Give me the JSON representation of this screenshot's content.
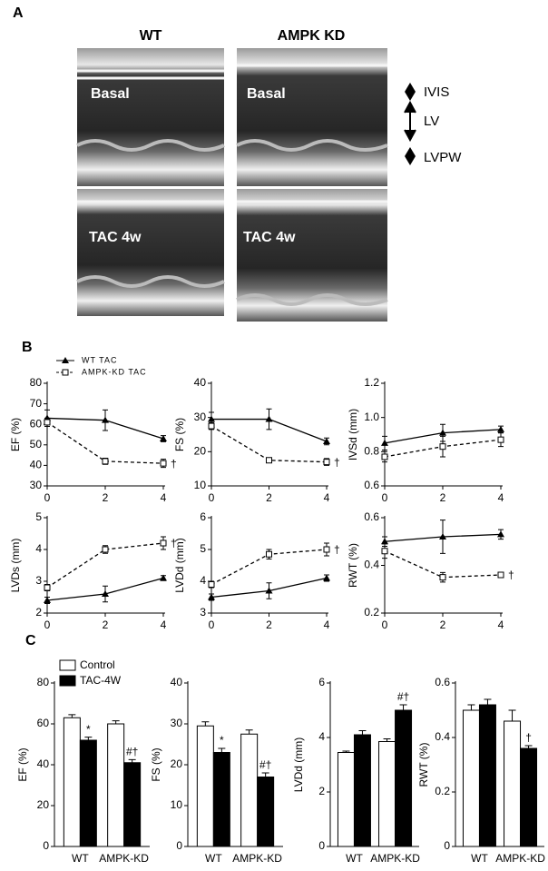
{
  "panel_a": {
    "label": "A",
    "columns": [
      "WT",
      "AMPK KD"
    ],
    "rows": [
      "Basal",
      "TAC 4w"
    ],
    "key": [
      "IVIS",
      "LV",
      "LVPW"
    ]
  },
  "panel_b_label": "B",
  "panel_c_label": "C",
  "chart_data": [
    {
      "type": "line",
      "y_label": "EF (%)",
      "x": [
        0,
        2,
        4
      ],
      "xlim": [
        0,
        4
      ],
      "xticks": [
        0,
        2,
        4
      ],
      "ylim": [
        30,
        80
      ],
      "yticks": [
        30,
        40,
        50,
        60,
        70,
        80
      ],
      "series": [
        {
          "name": "WT TAC",
          "color": "#000000",
          "line_style": "solid",
          "marker": "triangle",
          "values": [
            63,
            62,
            53
          ],
          "errors": [
            4,
            5,
            1.5
          ]
        },
        {
          "name": "AMPK-KD TAC",
          "color": "#000000",
          "line_style": "dashed",
          "marker": "square",
          "values": [
            61,
            42,
            41
          ],
          "errors": [
            2,
            1.5,
            2
          ],
          "end_label": "†"
        }
      ]
    },
    {
      "type": "line",
      "y_label": "FS (%)",
      "x": [
        0,
        2,
        4
      ],
      "xlim": [
        0,
        4
      ],
      "xticks": [
        0,
        2,
        4
      ],
      "ylim": [
        10,
        40
      ],
      "yticks": [
        10,
        20,
        30,
        40
      ],
      "series": [
        {
          "color": "#000000",
          "line_style": "solid",
          "marker": "triangle",
          "values": [
            29.5,
            29.5,
            23
          ],
          "errors": [
            2,
            3,
            1
          ]
        },
        {
          "color": "#000000",
          "line_style": "dashed",
          "marker": "square",
          "values": [
            27.5,
            17.5,
            17
          ],
          "errors": [
            1,
            0.7,
            1
          ],
          "end_label": "†"
        }
      ]
    },
    {
      "type": "line",
      "y_label": "IVSd (mm)",
      "x": [
        0,
        2,
        4
      ],
      "xlim": [
        0,
        4
      ],
      "xticks": [
        0,
        2,
        4
      ],
      "ylim": [
        0.6,
        1.2
      ],
      "yticks": [
        0.6,
        0.8,
        {
          "value": 1,
          "label": "1.0"
        },
        1.2
      ],
      "series": [
        {
          "color": "#000000",
          "line_style": "solid",
          "marker": "triangle",
          "values": [
            0.85,
            0.91,
            0.93
          ],
          "errors": [
            0.04,
            0.05,
            0.02
          ]
        },
        {
          "color": "#000000",
          "line_style": "dashed",
          "marker": "square",
          "values": [
            0.77,
            0.83,
            0.87
          ],
          "errors": [
            0.03,
            0.06,
            0.04
          ]
        }
      ]
    },
    {
      "type": "line",
      "y_label": "LVDs (mm)",
      "x": [
        0,
        2,
        4
      ],
      "xlim": [
        0,
        4
      ],
      "xticks": [
        0,
        2,
        4
      ],
      "ylim": [
        2,
        5
      ],
      "yticks": [
        2,
        3,
        4,
        5
      ],
      "series": [
        {
          "color": "#000000",
          "line_style": "solid",
          "marker": "triangle",
          "values": [
            2.4,
            2.6,
            3.1
          ],
          "errors": [
            0.1,
            0.25,
            0.08
          ]
        },
        {
          "color": "#000000",
          "line_style": "dashed",
          "marker": "square",
          "values": [
            2.8,
            4.0,
            4.2
          ],
          "errors": [
            0.1,
            0.12,
            0.2
          ],
          "end_label": "†"
        }
      ]
    },
    {
      "type": "line",
      "y_label": "LVDd (mm)",
      "x": [
        0,
        2,
        4
      ],
      "xlim": [
        0,
        4
      ],
      "xticks": [
        0,
        2,
        4
      ],
      "ylim": [
        3,
        6
      ],
      "yticks": [
        3,
        4,
        5,
        6
      ],
      "series": [
        {
          "color": "#000000",
          "line_style": "solid",
          "marker": "triangle",
          "values": [
            3.5,
            3.7,
            4.1
          ],
          "errors": [
            0.1,
            0.25,
            0.1
          ]
        },
        {
          "color": "#000000",
          "line_style": "dashed",
          "marker": "square",
          "values": [
            3.9,
            4.85,
            5.0
          ],
          "errors": [
            0.1,
            0.15,
            0.2
          ],
          "end_label": "†"
        }
      ]
    },
    {
      "type": "line",
      "y_label": "RWT (%)",
      "x": [
        0,
        2,
        4
      ],
      "xlim": [
        0,
        4
      ],
      "xticks": [
        0,
        2,
        4
      ],
      "ylim": [
        0.2,
        0.6
      ],
      "yticks": [
        0.2,
        0.4,
        0.6
      ],
      "series": [
        {
          "color": "#000000",
          "line_style": "solid",
          "marker": "triangle",
          "values": [
            0.5,
            0.52,
            0.53
          ],
          "errors": [
            0.02,
            0.07,
            0.02
          ]
        },
        {
          "color": "#000000",
          "line_style": "dashed",
          "marker": "square",
          "values": [
            0.46,
            0.35,
            0.36
          ],
          "errors": [
            0.03,
            0.02,
            0.01
          ],
          "end_label": "†"
        }
      ]
    },
    {
      "type": "bar",
      "y_label": "EF (%)",
      "categories": [
        "WT",
        "AMPK-KD"
      ],
      "ylim": [
        0,
        80
      ],
      "yticks": [
        0,
        20,
        40,
        60,
        80
      ],
      "series": [
        {
          "name": "Control",
          "color": "#ffffff",
          "values": [
            63,
            60
          ],
          "errors": [
            1.5,
            1.5
          ]
        },
        {
          "name": "TAC-4W",
          "color": "#000000",
          "values": [
            52,
            41
          ],
          "errors": [
            1.5,
            1.5
          ],
          "annotations": [
            "*",
            "#†"
          ]
        }
      ]
    },
    {
      "type": "bar",
      "y_label": "FS (%)",
      "categories": [
        "WT",
        "AMPK-KD"
      ],
      "ylim": [
        0,
        40
      ],
      "yticks": [
        0,
        10,
        20,
        30,
        40
      ],
      "series": [
        {
          "color": "#ffffff",
          "values": [
            29.5,
            27.5
          ],
          "errors": [
            1,
            1
          ]
        },
        {
          "color": "#000000",
          "values": [
            23,
            17
          ],
          "errors": [
            1,
            1
          ],
          "annotations": [
            "*",
            "#†"
          ]
        }
      ]
    },
    {
      "type": "bar",
      "y_label": "LVDd (mm)",
      "categories": [
        "WT",
        "AMPK-KD"
      ],
      "ylim": [
        0,
        6
      ],
      "yticks": [
        0,
        2,
        4,
        6
      ],
      "series": [
        {
          "color": "#ffffff",
          "values": [
            3.45,
            3.85
          ],
          "errors": [
            0.05,
            0.1
          ]
        },
        {
          "color": "#000000",
          "values": [
            4.1,
            5.0
          ],
          "errors": [
            0.15,
            0.2
          ],
          "annotations": [
            null,
            "#†"
          ]
        }
      ]
    },
    {
      "type": "bar",
      "y_label": "RWT (%)",
      "categories": [
        "WT",
        "AMPK-KD"
      ],
      "ylim": [
        0,
        0.6
      ],
      "yticks": [
        0,
        0.2,
        0.4,
        0.6
      ],
      "series": [
        {
          "color": "#ffffff",
          "values": [
            0.5,
            0.46
          ],
          "errors": [
            0.02,
            0.04
          ]
        },
        {
          "color": "#000000",
          "values": [
            0.52,
            0.36
          ],
          "errors": [
            0.02,
            0.01
          ],
          "annotations": [
            null,
            "†"
          ]
        }
      ]
    }
  ]
}
